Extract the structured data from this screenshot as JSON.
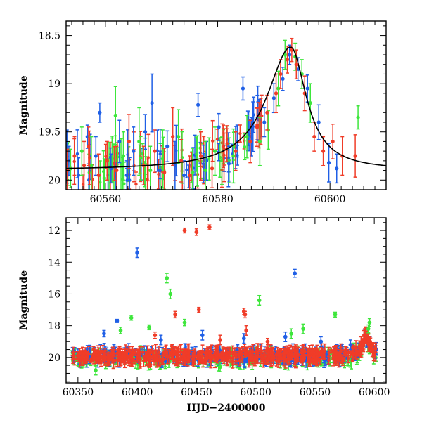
{
  "colors": {
    "blue": "#1f5fe6",
    "red": "#f03c28",
    "green": "#3ee63c",
    "model": "#000000"
  },
  "chart_data": [
    {
      "type": "scatter",
      "title": "",
      "xlabel": "",
      "ylabel": "Magnitude",
      "xlim": [
        60553,
        60610
      ],
      "ylim": [
        20.1,
        18.35
      ],
      "y_inverted": true,
      "x_ticks": [
        60560,
        60580,
        60600
      ],
      "y_ticks": [
        18.5,
        19,
        19.5,
        20
      ],
      "y_tick_labels": [
        "18.5",
        "19",
        "19.5",
        "20"
      ],
      "model_curve": {
        "description_type": "line",
        "peak_x": 60593,
        "peak_y": 18.62,
        "baseline_y": 19.9,
        "width_left": 5.2,
        "width_right": 3.4
      },
      "series": [
        {
          "color_key": "blue",
          "points": [
            [
              60553.5,
              19.8,
              0.15
            ],
            [
              60555.2,
              19.95,
              0.18
            ],
            [
              60556.8,
              19.55,
              0.12
            ],
            [
              60558.3,
              19.75,
              0.2
            ],
            [
              60559.0,
              19.3,
              0.1
            ],
            [
              60561.0,
              19.88,
              0.15
            ],
            [
              60562.5,
              19.6,
              0.22
            ],
            [
              60563.8,
              19.95,
              0.15
            ],
            [
              60565.0,
              19.7,
              0.25
            ],
            [
              60567.1,
              19.5,
              0.18
            ],
            [
              60568.3,
              19.2,
              0.3
            ],
            [
              60569.7,
              19.9,
              0.2
            ],
            [
              60571.0,
              19.65,
              0.16
            ],
            [
              60572.4,
              19.85,
              0.25
            ],
            [
              60574.0,
              19.95,
              0.15
            ],
            [
              60576.5,
              19.22,
              0.12
            ],
            [
              60578.0,
              19.8,
              0.2
            ],
            [
              60580.2,
              19.45,
              0.14
            ],
            [
              60582.0,
              19.83,
              0.18
            ],
            [
              60584.5,
              19.05,
              0.12
            ],
            [
              60586.0,
              19.55,
              0.2
            ],
            [
              60588.3,
              19.4,
              0.15
            ],
            [
              60590.0,
              19.15,
              0.15
            ],
            [
              60591.6,
              18.95,
              0.12
            ],
            [
              60592.8,
              18.7,
              0.1
            ],
            [
              60594.3,
              18.85,
              0.12
            ],
            [
              60596.0,
              19.05,
              0.14
            ],
            [
              60598.0,
              19.4,
              0.18
            ],
            [
              60599.8,
              19.82,
              0.2
            ],
            [
              60601.2,
              19.88,
              0.15
            ]
          ]
        },
        {
          "color_key": "green",
          "points": [
            [
              60553.8,
              19.88,
              0.2
            ],
            [
              60555.8,
              19.7,
              0.25
            ],
            [
              60557.5,
              19.85,
              0.3
            ],
            [
              60559.8,
              19.98,
              0.2
            ],
            [
              60561.8,
              19.33,
              0.3
            ],
            [
              60563.2,
              19.75,
              0.25
            ],
            [
              60566.0,
              19.6,
              0.35
            ],
            [
              60568.0,
              19.9,
              0.25
            ],
            [
              60570.2,
              19.78,
              0.3
            ],
            [
              60573.0,
              19.55,
              0.28
            ],
            [
              60575.5,
              19.92,
              0.25
            ],
            [
              60577.8,
              19.9,
              0.3
            ],
            [
              60579.5,
              19.7,
              0.25
            ],
            [
              60582.8,
              19.75,
              0.28
            ],
            [
              60585.2,
              19.55,
              0.22
            ],
            [
              60587.5,
              19.6,
              0.25
            ],
            [
              60589.0,
              19.48,
              0.2
            ],
            [
              60590.8,
              19.05,
              0.18
            ],
            [
              60592.0,
              18.7,
              0.15
            ],
            [
              60593.8,
              18.72,
              0.14
            ],
            [
              60595.0,
              18.9,
              0.15
            ],
            [
              60596.5,
              19.2,
              0.2
            ],
            [
              60605.0,
              19.35,
              0.12
            ]
          ]
        },
        {
          "color_key": "red",
          "points": [
            [
              60553.2,
              19.9,
              0.22
            ],
            [
              60554.5,
              19.75,
              0.2
            ],
            [
              60556.2,
              19.85,
              0.25
            ],
            [
              60557.0,
              19.65,
              0.2
            ],
            [
              60558.8,
              19.95,
              0.22
            ],
            [
              60560.3,
              19.8,
              0.2
            ],
            [
              60562.0,
              19.9,
              0.25
            ],
            [
              60564.2,
              19.6,
              0.28
            ],
            [
              60566.8,
              19.85,
              0.2
            ],
            [
              60568.8,
              19.7,
              0.22
            ],
            [
              60570.5,
              19.92,
              0.25
            ],
            [
              60572.0,
              19.55,
              0.3
            ],
            [
              60573.5,
              19.8,
              0.22
            ],
            [
              60575.0,
              19.95,
              0.2
            ],
            [
              60577.0,
              19.75,
              0.25
            ],
            [
              60579.0,
              19.88,
              0.2
            ],
            [
              60581.0,
              19.65,
              0.22
            ],
            [
              60583.2,
              19.7,
              0.2
            ],
            [
              60585.8,
              19.6,
              0.22
            ],
            [
              60587.0,
              19.45,
              0.2
            ],
            [
              60588.8,
              19.3,
              0.18
            ],
            [
              60590.4,
              19.1,
              0.2
            ],
            [
              60591.2,
              18.9,
              0.15
            ],
            [
              60592.4,
              18.75,
              0.14
            ],
            [
              60593.2,
              18.65,
              0.12
            ],
            [
              60594.0,
              18.8,
              0.15
            ],
            [
              60595.5,
              19.1,
              0.18
            ],
            [
              60597.2,
              19.55,
              0.15
            ],
            [
              60598.8,
              19.7,
              0.15
            ],
            [
              60600.5,
              19.6,
              0.18
            ],
            [
              60602.2,
              19.75,
              0.2
            ],
            [
              60604.5,
              19.75,
              0.22
            ]
          ]
        }
      ]
    },
    {
      "type": "scatter",
      "title": "",
      "xlabel": "HJD−2400000",
      "ylabel": "Magnitude",
      "xlim": [
        60340,
        60610
      ],
      "ylim": [
        21.6,
        11.2
      ],
      "y_inverted": true,
      "x_ticks": [
        60350,
        60400,
        60450,
        60500,
        60550,
        60600
      ],
      "y_ticks": [
        12,
        14,
        16,
        18,
        20
      ],
      "y_tick_labels": [
        "12",
        "14",
        "16",
        "18",
        "20"
      ],
      "bulk_band": {
        "x_start": 60345,
        "x_end": 60602,
        "y_center": 19.9,
        "y_spread": 0.35,
        "peak_x": 60593,
        "peak_y": 18.7
      },
      "series": [
        {
          "color_key": "blue",
          "points": [
            [
              60400,
              13.4,
              0.3
            ],
            [
              60533,
              14.7,
              0.25
            ],
            [
              60383,
              17.7,
              0.1
            ],
            [
              60372,
              18.5,
              0.2
            ],
            [
              60420,
              18.9,
              0.3
            ],
            [
              60455,
              18.6,
              0.3
            ],
            [
              60490,
              18.8,
              0.3
            ],
            [
              60525,
              18.7,
              0.3
            ],
            [
              60555,
              19.0,
              0.3
            ],
            [
              60580,
              19.2,
              0.3
            ]
          ]
        },
        {
          "color_key": "green",
          "points": [
            [
              60425,
              15.0,
              0.3
            ],
            [
              60428,
              16.0,
              0.3
            ],
            [
              60503,
              16.4,
              0.3
            ],
            [
              60567,
              17.3,
              0.15
            ],
            [
              60395,
              17.5,
              0.15
            ],
            [
              60410,
              18.1,
              0.15
            ],
            [
              60530,
              18.5,
              0.3
            ],
            [
              60540,
              18.2,
              0.3
            ],
            [
              60440,
              17.8,
              0.2
            ],
            [
              60386,
              18.3,
              0.2
            ],
            [
              60596,
              17.8,
              0.25
            ],
            [
              60595,
              18.2,
              0.25
            ],
            [
              60365,
              20.8,
              0.3
            ],
            [
              60470,
              20.6,
              0.3
            ]
          ]
        },
        {
          "color_key": "red",
          "points": [
            [
              60440,
              12.0,
              0.15
            ],
            [
              60450,
              12.1,
              0.2
            ],
            [
              60461,
              11.8,
              0.15
            ],
            [
              60432,
              17.3,
              0.2
            ],
            [
              60452,
              17.0,
              0.15
            ],
            [
              60490,
              17.1,
              0.2
            ],
            [
              60491,
              17.3,
              0.2
            ],
            [
              60492,
              18.3,
              0.3
            ],
            [
              60415,
              18.6,
              0.2
            ],
            [
              60470,
              18.9,
              0.3
            ],
            [
              60510,
              19.0,
              0.2
            ]
          ]
        }
      ]
    }
  ]
}
